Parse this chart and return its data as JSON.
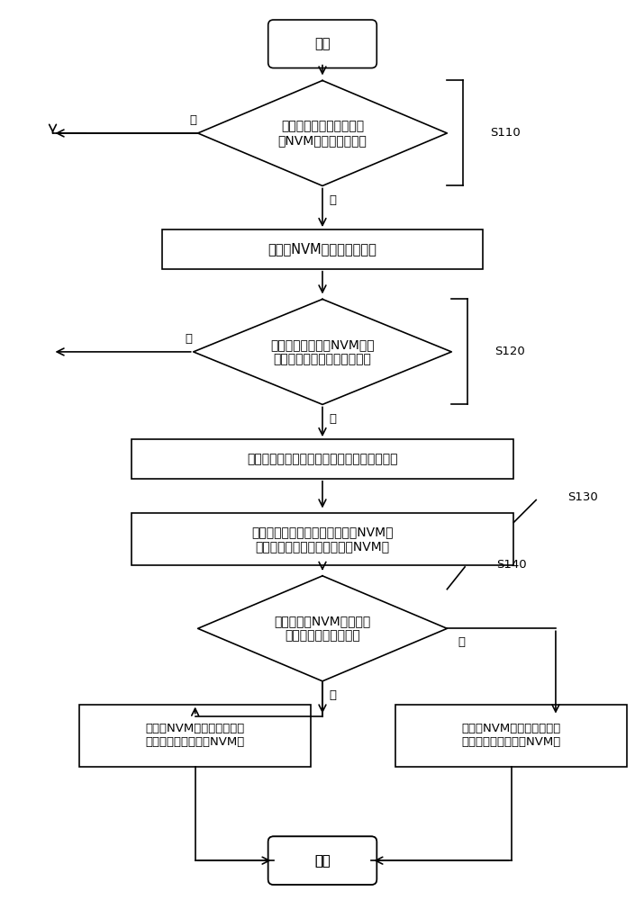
{
  "bg_color": "#ffffff",
  "line_color": "#000000",
  "text_color": "#000000",
  "font_size": 10.5,
  "start_text": "开始",
  "end_text": "结束",
  "d1_text": "判断内存申请是否需要采\n用NVM内存申请的方式",
  "d1_label": "S110",
  "r1_text": "使用带NVM标志的内存申请",
  "d2_text": "判断是否需要将带NVM标志\n的内存申请进行内存数据备份",
  "d2_label": "S120",
  "r2_text": "则向异构混合内存的控制器发送数据备份信号",
  "r3_text": "根据所述数据备份信号将所述带NVM标\n志的内存申请中的数据备份到NVM中",
  "r3_label": "S130",
  "d3_text": "判断所述带NVM标志的内\n存申请是否为首次备份",
  "d3_label": "S140",
  "r4_text": "则将带NVM标志的内存申请\n中的数据完全备份到NVM中",
  "r5_text": "则将带NVM标志的内存申请\n中的数据增量备份到NVM中",
  "yes_text": "是",
  "no_text": "否"
}
